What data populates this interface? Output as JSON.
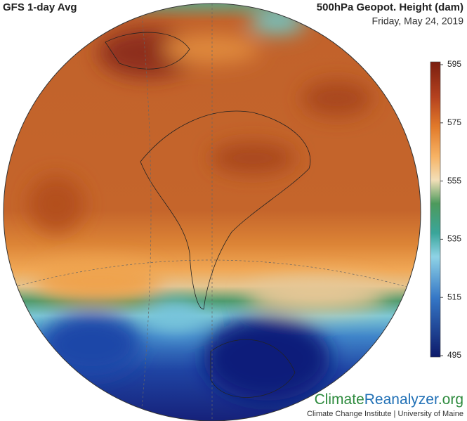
{
  "header": {
    "title": "GFS 1-day Avg",
    "variable": "500hPa Geopot. Height (dam)",
    "date": "Friday, May 24, 2019"
  },
  "colorbar": {
    "range": [
      495,
      595
    ],
    "ticks": [
      595,
      575,
      555,
      535,
      515,
      495
    ]
  },
  "logo": {
    "parts": [
      "Climate",
      "Reanalyzer",
      ".org"
    ],
    "subtitle": "Climate Change Institute | University of Maine"
  }
}
